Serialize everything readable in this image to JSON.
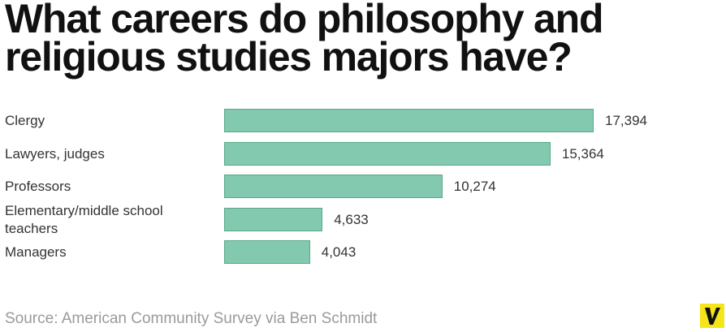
{
  "chart_data": {
    "type": "bar",
    "orientation": "horizontal",
    "title": "What careers do philosophy and religious studies majors have?",
    "categories": [
      "Clergy",
      "Lawyers, judges",
      "Professors",
      "Elementary/middle school teachers",
      "Managers"
    ],
    "values": [
      17394,
      15364,
      10274,
      4633,
      4043
    ],
    "value_labels": [
      "17,394",
      "15,364",
      "10,274",
      "4,633",
      "4,043"
    ],
    "color": "#82c9b0",
    "source": "Source: American Community Survey via Ben Schmidt"
  }
}
